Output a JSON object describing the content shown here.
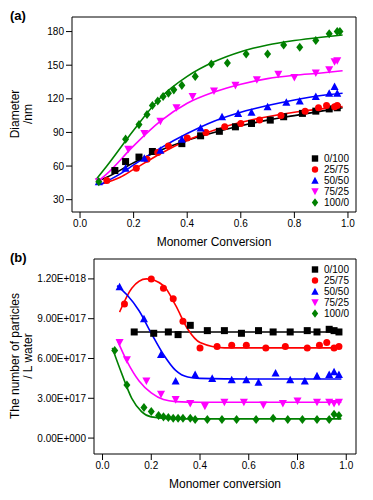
{
  "chart_data": [
    {
      "type": "scatter",
      "title": "(a)",
      "xlabel": "Monomer Conversion",
      "ylabel": [
        "Diameter",
        "/nm"
      ],
      "xlim": [
        -0.03,
        1.03
      ],
      "xticks": [
        {
          "value": 0,
          "label": "0.0"
        },
        0.2,
        0.4,
        0.6,
        0.8,
        {
          "value": 1,
          "label": "1.0"
        }
      ],
      "ylim": [
        19,
        193
      ],
      "yticks": [
        30,
        60,
        90,
        120,
        150,
        180
      ],
      "legend": "lower right",
      "series": [
        {
          "name": "0/100",
          "color": "#000000",
          "marker": "square",
          "x": [
            0.13,
            0.17,
            0.22,
            0.27,
            0.38,
            0.45,
            0.52,
            0.58,
            0.64,
            0.71,
            0.76,
            0.83,
            0.88,
            0.93,
            0.96
          ],
          "values": [
            56,
            64,
            68,
            73,
            80,
            87,
            91,
            95,
            98,
            101,
            104,
            107,
            109,
            111,
            112
          ],
          "fit_x": [
            0.08,
            0.1,
            0.2,
            0.3,
            0.4,
            0.5,
            0.6,
            0.7,
            0.8,
            0.9,
            0.98
          ],
          "fit_values": [
            48,
            50,
            63,
            74,
            83,
            90,
            96,
            101,
            105,
            109,
            112
          ]
        },
        {
          "name": "25/75",
          "color": "#ff0000",
          "marker": "circle",
          "x": [
            0.1,
            0.21,
            0.25,
            0.29,
            0.33,
            0.4,
            0.47,
            0.54,
            0.6,
            0.67,
            0.75,
            0.84,
            0.89,
            0.92,
            0.95,
            0.96
          ],
          "values": [
            47,
            58,
            66,
            72,
            78,
            85,
            90,
            95,
            98,
            101,
            105,
            109,
            112,
            114,
            113,
            114
          ],
          "fit_x": [
            0.08,
            0.15,
            0.2,
            0.3,
            0.4,
            0.5,
            0.6,
            0.7,
            0.8,
            0.9,
            0.98
          ],
          "fit_values": [
            44,
            50,
            57,
            71,
            83,
            92,
            99,
            104,
            108,
            111,
            113
          ]
        },
        {
          "name": "50/50",
          "color": "#0000ff",
          "marker": "triangle",
          "x": [
            0.07,
            0.17,
            0.24,
            0.3,
            0.38,
            0.45,
            0.53,
            0.59,
            0.64,
            0.7,
            0.77,
            0.82,
            0.88,
            0.93,
            0.95,
            0.96
          ],
          "values": [
            46,
            58,
            67,
            74,
            84,
            94,
            104,
            107,
            108,
            113,
            117,
            118,
            122,
            125,
            131,
            125
          ],
          "fit_x": [
            0.08,
            0.15,
            0.2,
            0.3,
            0.4,
            0.5,
            0.6,
            0.7,
            0.8,
            0.9,
            0.98
          ],
          "fit_values": [
            44,
            53,
            61,
            76,
            89,
            100,
            108,
            114,
            119,
            123,
            125
          ]
        },
        {
          "name": "75/25",
          "color": "#ff00ff",
          "marker": "triangle-down",
          "x": [
            0.07,
            0.18,
            0.24,
            0.3,
            0.36,
            0.42,
            0.5,
            0.58,
            0.66,
            0.74,
            0.8,
            0.88,
            0.93,
            0.95,
            0.96
          ],
          "values": [
            46,
            75,
            89,
            100,
            112,
            122,
            127,
            132,
            137,
            142,
            139,
            143,
            146,
            153,
            154
          ],
          "fit_x": [
            0.06,
            0.1,
            0.2,
            0.3,
            0.4,
            0.5,
            0.6,
            0.7,
            0.8,
            0.9,
            0.98
          ],
          "fit_values": [
            45,
            53,
            78,
            100,
            116,
            126,
            133,
            138,
            141,
            143,
            145
          ]
        },
        {
          "name": "100/0",
          "color": "#008000",
          "marker": "diamond",
          "x": [
            0.07,
            0.17,
            0.22,
            0.25,
            0.27,
            0.29,
            0.31,
            0.33,
            0.35,
            0.38,
            0.43,
            0.49,
            0.55,
            0.62,
            0.7,
            0.76,
            0.82,
            0.88,
            0.93,
            0.96,
            0.97
          ],
          "values": [
            46,
            84,
            97,
            106,
            114,
            118,
            122,
            125,
            128,
            132,
            140,
            151,
            152,
            160,
            160,
            168,
            166,
            172,
            178,
            180,
            180
          ],
          "fit_x": [
            0.06,
            0.1,
            0.2,
            0.3,
            0.4,
            0.5,
            0.6,
            0.7,
            0.8,
            0.9,
            0.98
          ],
          "fit_values": [
            48,
            60,
            92,
            121,
            140,
            153,
            162,
            168,
            172,
            175,
            177
          ]
        }
      ]
    },
    {
      "type": "scatter",
      "title": "(b)",
      "xlabel": "Monomer conversion",
      "ylabel": [
        "The number of particles",
        "/ L water"
      ],
      "xlim": [
        -0.035,
        1.04
      ],
      "xticks": [
        {
          "value": 0,
          "label": "0.0"
        },
        0.2,
        0.4,
        0.6,
        0.8,
        {
          "value": 1,
          "label": "1.0"
        }
      ],
      "ylim": [
        -1.2e+17,
        1.35e+18
      ],
      "yticks": [
        {
          "value": 0,
          "label": "0.00E+000"
        },
        {
          "value": 3e+17,
          "label": "3.00E+017"
        },
        {
          "value": 6e+17,
          "label": "6.00E+017"
        },
        {
          "value": 9e+17,
          "label": "9.00E+017"
        },
        {
          "value": 1.2e+18,
          "label": "1.20E+018"
        }
      ],
      "legend": "upper right",
      "series": [
        {
          "name": "0/100",
          "color": "#000000",
          "marker": "square",
          "x": [
            0.13,
            0.21,
            0.27,
            0.31,
            0.36,
            0.43,
            0.5,
            0.57,
            0.64,
            0.7,
            0.77,
            0.84,
            0.88,
            0.93,
            0.95,
            0.97
          ],
          "values": [
            8e+17,
            7.9e+17,
            8e+17,
            7.8e+17,
            8.5e+17,
            8.1e+17,
            8.1e+17,
            7.9e+17,
            8.1e+17,
            8e+17,
            8e+17,
            8.1e+17,
            8e+17,
            8.2e+17,
            8.1e+17,
            8e+17
          ],
          "fit_x": [
            0.12,
            0.98
          ],
          "fit_values": [
            8e+17,
            8e+17
          ]
        },
        {
          "name": "25/75",
          "color": "#ff0000",
          "marker": "circle",
          "x": [
            0.09,
            0.2,
            0.25,
            0.29,
            0.33,
            0.4,
            0.47,
            0.53,
            0.59,
            0.67,
            0.75,
            0.84,
            0.89,
            0.92,
            0.95,
            0.97
          ],
          "values": [
            1.01e+18,
            1.2e+18,
            1.13e+18,
            1.05e+18,
            8.8e+17,
            6.8e+17,
            6.9e+17,
            7e+17,
            7e+17,
            6.8e+17,
            6.9e+17,
            6.8e+17,
            7e+17,
            7.2e+17,
            6.8e+17,
            6.9e+17
          ],
          "fit_x": [
            0.07,
            0.12,
            0.18,
            0.25,
            0.3,
            0.35,
            0.4,
            0.5,
            0.7,
            0.98
          ],
          "fit_values": [
            9.5e+17,
            1.13e+18,
            1.2e+18,
            1.15e+18,
            1e+18,
            8.2e+17,
            7.2e+17,
            6.8e+17,
            6.8e+17,
            6.8e+17
          ]
        },
        {
          "name": "50/50",
          "color": "#0000ff",
          "marker": "triangle",
          "x": [
            0.07,
            0.17,
            0.24,
            0.3,
            0.38,
            0.45,
            0.53,
            0.59,
            0.64,
            0.71,
            0.77,
            0.83,
            0.88,
            0.93,
            0.95,
            0.97
          ],
          "values": [
            1.14e+18,
            9e+17,
            6.3e+17,
            4.3e+17,
            4.8e+17,
            4.5e+17,
            4.4e+17,
            4.4e+17,
            4.2e+17,
            4.9e+17,
            4.4e+17,
            4.3e+17,
            4.7e+17,
            4.8e+17,
            5e+17,
            4.8e+17
          ],
          "fit_x": [
            0.06,
            0.1,
            0.15,
            0.2,
            0.25,
            0.3,
            0.35,
            0.4,
            0.6,
            0.98
          ],
          "fit_values": [
            1.15e+18,
            1.08e+18,
            9.6e+17,
            7.9e+17,
            6.3e+17,
            5.1e+17,
            4.6e+17,
            4.5e+17,
            4.45e+17,
            4.45e+17
          ]
        },
        {
          "name": "75/25",
          "color": "#ff00ff",
          "marker": "triangle-down",
          "x": [
            0.07,
            0.1,
            0.18,
            0.24,
            0.3,
            0.36,
            0.42,
            0.5,
            0.58,
            0.66,
            0.74,
            0.8,
            0.88,
            0.93,
            0.95,
            0.97
          ],
          "values": [
            7.2e+17,
            5.9e+17,
            4.3e+17,
            3.3e+17,
            2.9e+17,
            2.6e+17,
            2.4e+17,
            2.7e+17,
            2.7e+17,
            2.5e+17,
            2.6e+17,
            2.8e+17,
            2.7e+17,
            2.7e+17,
            2.6e+17,
            2.7e+17
          ],
          "fit_x": [
            0.06,
            0.1,
            0.15,
            0.2,
            0.25,
            0.3,
            0.4,
            0.98
          ],
          "fit_values": [
            7.4e+17,
            5.8e+17,
            4.3e+17,
            3.4e+17,
            2.9e+17,
            2.75e+17,
            2.7e+17,
            2.7e+17
          ]
        },
        {
          "name": "100/0",
          "color": "#008000",
          "marker": "diamond",
          "x": [
            0.05,
            0.1,
            0.17,
            0.2,
            0.23,
            0.25,
            0.27,
            0.29,
            0.31,
            0.33,
            0.36,
            0.38,
            0.43,
            0.49,
            0.55,
            0.63,
            0.7,
            0.76,
            0.82,
            0.88,
            0.93,
            0.95,
            0.97
          ],
          "values": [
            6.6e+17,
            4e+17,
            2.3e+17,
            2e+17,
            1.7e+17,
            1.6e+17,
            1.55e+17,
            1.5e+17,
            1.5e+17,
            1.5e+17,
            1.5e+17,
            1.4e+17,
            1.4e+17,
            1.4e+17,
            1.4e+17,
            1.4e+17,
            1.5e+17,
            1.4e+17,
            1.4e+17,
            1.4e+17,
            1.4e+17,
            1.8e+17,
            1.7e+17
          ],
          "fit_x": [
            0.04,
            0.08,
            0.12,
            0.16,
            0.2,
            0.3,
            0.98
          ],
          "fit_values": [
            6.8e+17,
            4.8e+17,
            3e+17,
            2e+17,
            1.6e+17,
            1.45e+17,
            1.45e+17
          ]
        }
      ]
    }
  ]
}
